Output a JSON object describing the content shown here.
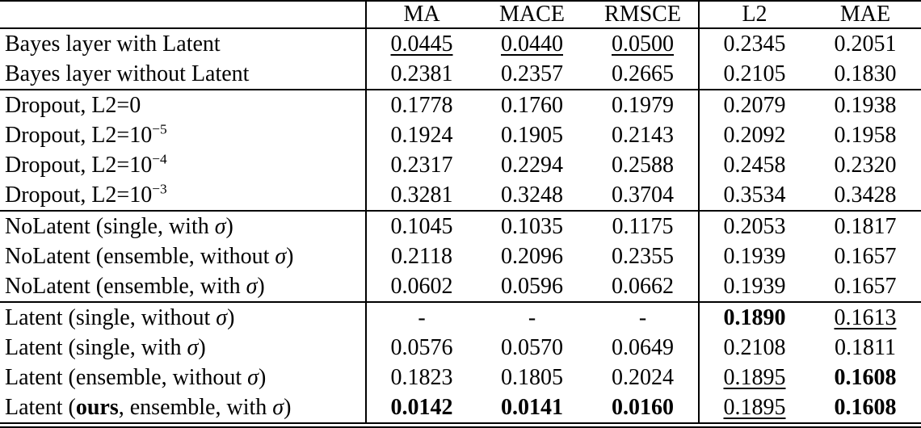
{
  "table": {
    "columns": [
      "",
      "MA",
      "MACE",
      "RMSCE",
      "L2",
      "MAE"
    ],
    "group_sizes": [
      2,
      4,
      3,
      4
    ],
    "colors": {
      "text": "#000000",
      "rule": "#000000",
      "background": "#ffffff"
    },
    "rows": [
      {
        "label": [
          {
            "t": "Bayes layer with Latent"
          }
        ],
        "cells": [
          {
            "v": "0.0445",
            "em": "underline"
          },
          {
            "v": "0.0440",
            "em": "underline"
          },
          {
            "v": "0.0500",
            "em": "underline"
          },
          {
            "v": "0.2345",
            "em": "none"
          },
          {
            "v": "0.2051",
            "em": "none"
          }
        ]
      },
      {
        "label": [
          {
            "t": "Bayes layer without Latent"
          }
        ],
        "cells": [
          {
            "v": "0.2381",
            "em": "none"
          },
          {
            "v": "0.2357",
            "em": "none"
          },
          {
            "v": "0.2665",
            "em": "none"
          },
          {
            "v": "0.2105",
            "em": "none"
          },
          {
            "v": "0.1830",
            "em": "none"
          }
        ]
      },
      {
        "label": [
          {
            "t": "Dropout, L2=0"
          }
        ],
        "cells": [
          {
            "v": "0.1778",
            "em": "none"
          },
          {
            "v": "0.1760",
            "em": "none"
          },
          {
            "v": "0.1979",
            "em": "none"
          },
          {
            "v": "0.2079",
            "em": "none"
          },
          {
            "v": "0.1938",
            "em": "none"
          }
        ]
      },
      {
        "label": [
          {
            "t": "Dropout, L2=10"
          },
          {
            "t": "−5",
            "sup": true
          }
        ],
        "cells": [
          {
            "v": "0.1924",
            "em": "none"
          },
          {
            "v": "0.1905",
            "em": "none"
          },
          {
            "v": "0.2143",
            "em": "none"
          },
          {
            "v": "0.2092",
            "em": "none"
          },
          {
            "v": "0.1958",
            "em": "none"
          }
        ]
      },
      {
        "label": [
          {
            "t": "Dropout, L2=10"
          },
          {
            "t": "−4",
            "sup": true
          }
        ],
        "cells": [
          {
            "v": "0.2317",
            "em": "none"
          },
          {
            "v": "0.2294",
            "em": "none"
          },
          {
            "v": "0.2588",
            "em": "none"
          },
          {
            "v": "0.2458",
            "em": "none"
          },
          {
            "v": "0.2320",
            "em": "none"
          }
        ]
      },
      {
        "label": [
          {
            "t": "Dropout, L2=10"
          },
          {
            "t": "−3",
            "sup": true
          }
        ],
        "cells": [
          {
            "v": "0.3281",
            "em": "none"
          },
          {
            "v": "0.3248",
            "em": "none"
          },
          {
            "v": "0.3704",
            "em": "none"
          },
          {
            "v": "0.3534",
            "em": "none"
          },
          {
            "v": "0.3428",
            "em": "none"
          }
        ]
      },
      {
        "label": [
          {
            "t": "NoLatent (single, with "
          },
          {
            "t": "σ",
            "italic": true
          },
          {
            "t": ")"
          }
        ],
        "cells": [
          {
            "v": "0.1045",
            "em": "none"
          },
          {
            "v": "0.1035",
            "em": "none"
          },
          {
            "v": "0.1175",
            "em": "none"
          },
          {
            "v": "0.2053",
            "em": "none"
          },
          {
            "v": "0.1817",
            "em": "none"
          }
        ]
      },
      {
        "label": [
          {
            "t": "NoLatent (ensemble, without "
          },
          {
            "t": "σ",
            "italic": true
          },
          {
            "t": ")"
          }
        ],
        "cells": [
          {
            "v": "0.2118",
            "em": "none"
          },
          {
            "v": "0.2096",
            "em": "none"
          },
          {
            "v": "0.2355",
            "em": "none"
          },
          {
            "v": "0.1939",
            "em": "none"
          },
          {
            "v": "0.1657",
            "em": "none"
          }
        ]
      },
      {
        "label": [
          {
            "t": "NoLatent (ensemble, with "
          },
          {
            "t": "σ",
            "italic": true
          },
          {
            "t": ")"
          }
        ],
        "cells": [
          {
            "v": "0.0602",
            "em": "none"
          },
          {
            "v": "0.0596",
            "em": "none"
          },
          {
            "v": "0.0662",
            "em": "none"
          },
          {
            "v": "0.1939",
            "em": "none"
          },
          {
            "v": "0.1657",
            "em": "none"
          }
        ]
      },
      {
        "label": [
          {
            "t": "Latent (single, without "
          },
          {
            "t": "σ",
            "italic": true
          },
          {
            "t": ")"
          }
        ],
        "cells": [
          {
            "v": "-",
            "em": "none"
          },
          {
            "v": "-",
            "em": "none"
          },
          {
            "v": "-",
            "em": "none"
          },
          {
            "v": "0.1890",
            "em": "bold"
          },
          {
            "v": "0.1613",
            "em": "underline"
          }
        ]
      },
      {
        "label": [
          {
            "t": "Latent (single, with "
          },
          {
            "t": "σ",
            "italic": true
          },
          {
            "t": ")"
          }
        ],
        "cells": [
          {
            "v": "0.0576",
            "em": "none"
          },
          {
            "v": "0.0570",
            "em": "none"
          },
          {
            "v": "0.0649",
            "em": "none"
          },
          {
            "v": "0.2108",
            "em": "none"
          },
          {
            "v": "0.1811",
            "em": "none"
          }
        ]
      },
      {
        "label": [
          {
            "t": "Latent (ensemble, without "
          },
          {
            "t": "σ",
            "italic": true
          },
          {
            "t": ")"
          }
        ],
        "cells": [
          {
            "v": "0.1823",
            "em": "none"
          },
          {
            "v": "0.1805",
            "em": "none"
          },
          {
            "v": "0.2024",
            "em": "none"
          },
          {
            "v": "0.1895",
            "em": "underline"
          },
          {
            "v": "0.1608",
            "em": "bold"
          }
        ]
      },
      {
        "label": [
          {
            "t": "Latent ("
          },
          {
            "t": "ours",
            "bold": true
          },
          {
            "t": ", ensemble, with "
          },
          {
            "t": "σ",
            "italic": true
          },
          {
            "t": ")"
          }
        ],
        "cells": [
          {
            "v": "0.0142",
            "em": "bold"
          },
          {
            "v": "0.0141",
            "em": "bold"
          },
          {
            "v": "0.0160",
            "em": "bold"
          },
          {
            "v": "0.1895",
            "em": "underline"
          },
          {
            "v": "0.1608",
            "em": "bold"
          }
        ]
      }
    ]
  }
}
